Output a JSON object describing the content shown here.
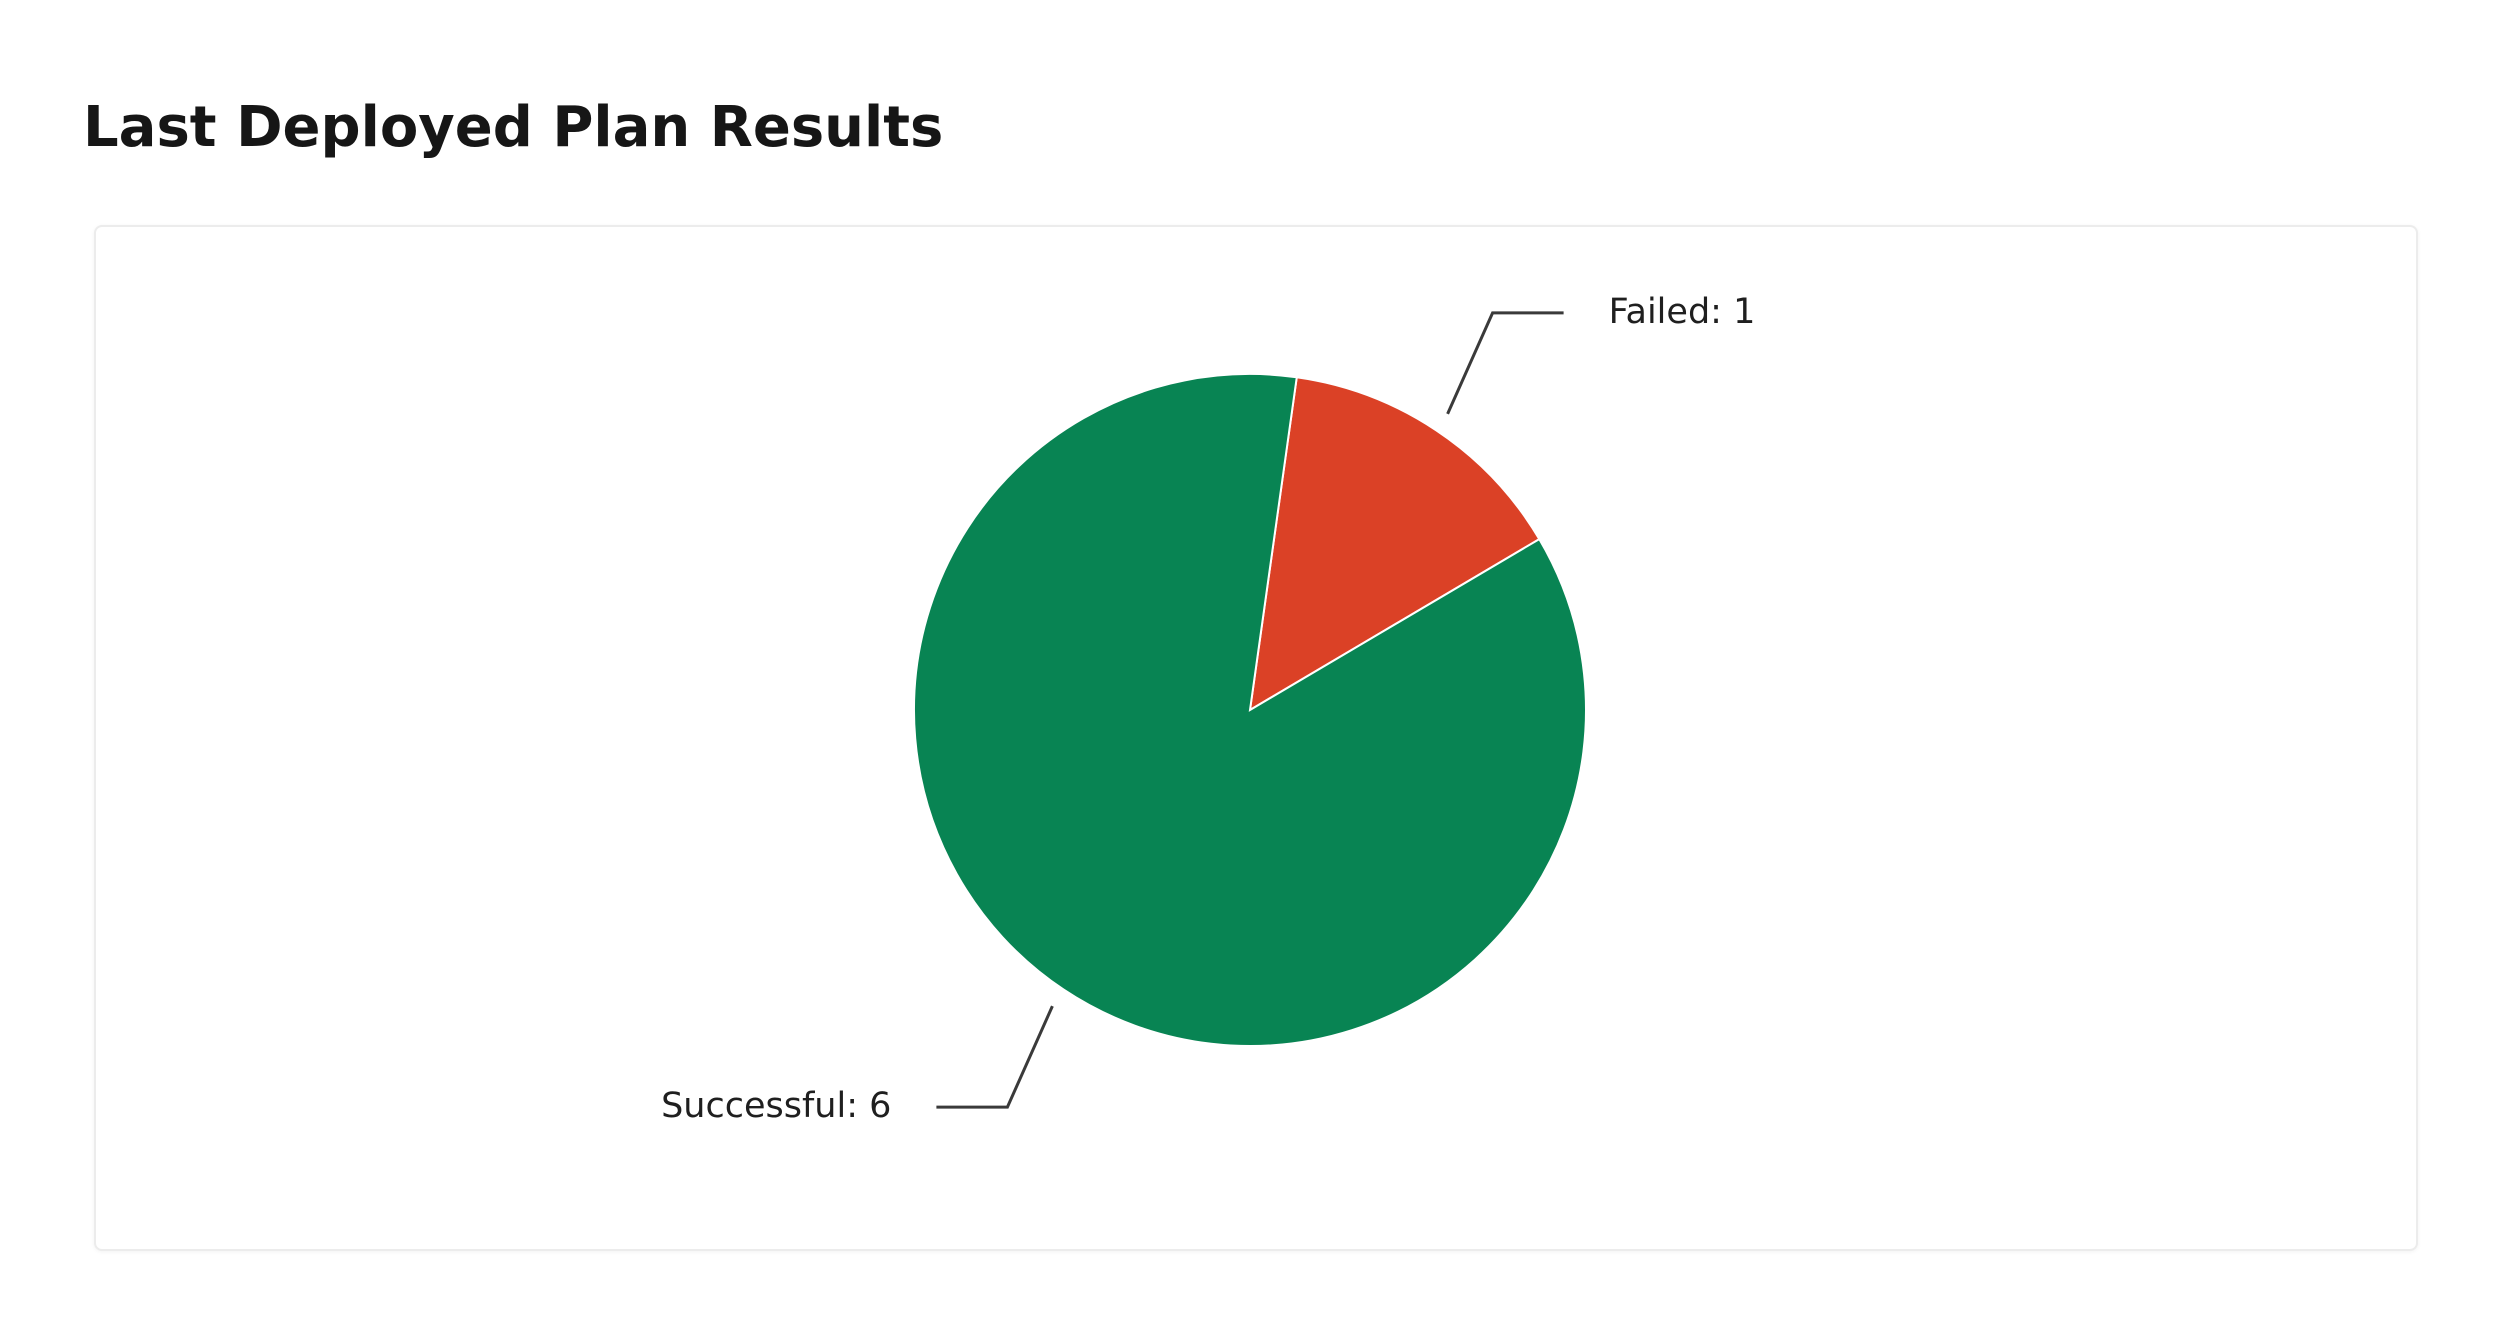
{
  "chart_data": {
    "type": "pie",
    "title": "Last Deployed Plan Results",
    "values": [
      1,
      6
    ],
    "value_labels": [
      "Failed: 1",
      "Successful: 6"
    ],
    "colors": [
      "#db4126",
      "#088453"
    ]
  }
}
